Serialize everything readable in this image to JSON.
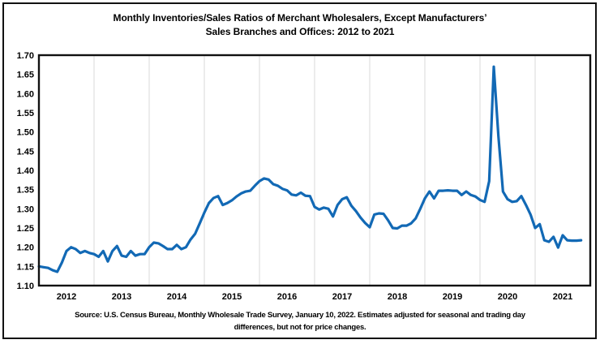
{
  "figure": {
    "title_line1": "Monthly Inventories/Sales Ratios of Merchant Wholesalers, Except Manufacturers’",
    "title_line2": "Sales Branches and Offices: 2012 to 2021",
    "source_line1": "Source: U.S. Census Bureau, Monthly Wholesale Trade Survey, January 10, 2022. Estimates adjusted for seasonal and trading day",
    "source_line2": "differences, but not for price changes."
  },
  "chart_data": {
    "type": "line",
    "title": "Monthly Inventories/Sales Ratios of Merchant Wholesalers, Except Manufacturers’ Sales Branches and Offices: 2012 to 2021",
    "xlabel": "",
    "ylabel": "",
    "x_start_month": "2012-01",
    "x_end_month": "2021-11",
    "years": [
      "2012",
      "2013",
      "2014",
      "2015",
      "2016",
      "2017",
      "2018",
      "2019",
      "2020",
      "2021"
    ],
    "ylim": [
      1.1,
      1.7
    ],
    "y_tick_step": 0.05,
    "y_tick_labels": [
      "1.10",
      "1.15",
      "1.20",
      "1.25",
      "1.30",
      "1.35",
      "1.40",
      "1.45",
      "1.50",
      "1.55",
      "1.60",
      "1.65",
      "1.70"
    ],
    "grid": "vertical-yearly",
    "legend": "none",
    "line_color": "#1269b5",
    "gridline_color": "#d9d9d9",
    "border_color": "#111111",
    "series": [
      {
        "name": "Inventories/Sales Ratio",
        "values": [
          1.15,
          1.148,
          1.146,
          1.14,
          1.136,
          1.16,
          1.19,
          1.2,
          1.195,
          1.185,
          1.19,
          1.185,
          1.182,
          1.175,
          1.19,
          1.163,
          1.19,
          1.203,
          1.178,
          1.175,
          1.19,
          1.178,
          1.182,
          1.182,
          1.2,
          1.212,
          1.21,
          1.203,
          1.195,
          1.195,
          1.206,
          1.195,
          1.2,
          1.22,
          1.235,
          1.262,
          1.29,
          1.315,
          1.328,
          1.333,
          1.31,
          1.315,
          1.322,
          1.332,
          1.34,
          1.345,
          1.347,
          1.36,
          1.372,
          1.379,
          1.376,
          1.364,
          1.36,
          1.352,
          1.348,
          1.337,
          1.335,
          1.342,
          1.334,
          1.333,
          1.305,
          1.298,
          1.303,
          1.3,
          1.28,
          1.31,
          1.325,
          1.33,
          1.308,
          1.294,
          1.277,
          1.263,
          1.252,
          1.285,
          1.288,
          1.287,
          1.27,
          1.25,
          1.249,
          1.256,
          1.256,
          1.262,
          1.275,
          1.3,
          1.327,
          1.345,
          1.327,
          1.347,
          1.347,
          1.348,
          1.347,
          1.347,
          1.336,
          1.345,
          1.336,
          1.332,
          1.323,
          1.318,
          1.372,
          1.67,
          1.49,
          1.345,
          1.325,
          1.318,
          1.32,
          1.333,
          1.31,
          1.285,
          1.25,
          1.26,
          1.218,
          1.214,
          1.227,
          1.199,
          1.231,
          1.218,
          1.217,
          1.217,
          1.218
        ]
      }
    ]
  }
}
